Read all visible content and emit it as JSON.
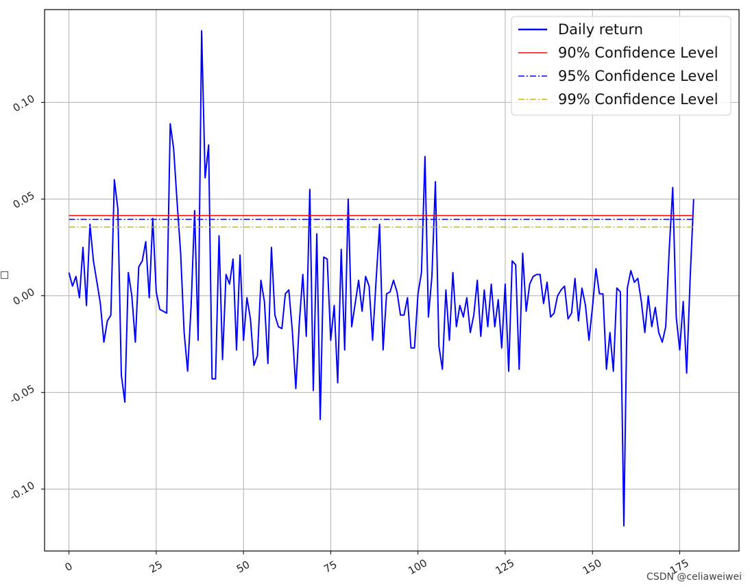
{
  "chart_data": {
    "type": "line",
    "title": "",
    "xlabel": "",
    "ylabel": "",
    "xlim": [
      -7,
      192
    ],
    "ylim": [
      -0.132,
      0.148
    ],
    "xticks": [
      0,
      25,
      50,
      75,
      100,
      125,
      150,
      175
    ],
    "xtick_labels": [
      "0",
      "25",
      "50",
      "75",
      "100",
      "125",
      "150",
      "175"
    ],
    "yticks": [
      -0.1,
      -0.05,
      0.0,
      0.05,
      0.1
    ],
    "ytick_labels": [
      "-0.10",
      "-0.05",
      "0.00",
      "0.05",
      "0.10"
    ],
    "grid": true,
    "legend_position": "top-right",
    "series": [
      {
        "name": "Daily return",
        "color": "#0000ff",
        "style": "solid",
        "x_start": 0,
        "values": [
          0.012,
          0.005,
          0.01,
          -0.001,
          0.025,
          -0.005,
          0.037,
          0.018,
          0.007,
          -0.004,
          -0.024,
          -0.013,
          -0.01,
          0.06,
          0.045,
          -0.041,
          -0.055,
          0.012,
          0.0,
          -0.024,
          0.015,
          0.018,
          0.028,
          -0.001,
          0.04,
          0.002,
          -0.007,
          -0.008,
          -0.009,
          0.089,
          0.076,
          0.048,
          0.022,
          -0.019,
          -0.039,
          -0.005,
          0.044,
          -0.023,
          0.137,
          0.061,
          0.078,
          -0.043,
          -0.043,
          0.031,
          -0.033,
          0.011,
          0.006,
          0.019,
          -0.028,
          0.021,
          -0.023,
          -0.001,
          -0.012,
          -0.036,
          -0.031,
          0.008,
          -0.003,
          -0.035,
          0.025,
          -0.01,
          -0.016,
          -0.017,
          0.001,
          0.003,
          -0.018,
          -0.048,
          -0.014,
          0.011,
          -0.021,
          0.055,
          -0.049,
          0.032,
          -0.064,
          0.02,
          0.019,
          -0.023,
          -0.005,
          -0.045,
          0.024,
          -0.028,
          0.05,
          -0.016,
          -0.004,
          0.008,
          -0.008,
          0.01,
          0.005,
          -0.023,
          0.008,
          0.037,
          -0.028,
          0.001,
          0.002,
          0.008,
          0.002,
          -0.01,
          -0.01,
          -0.001,
          -0.027,
          -0.027,
          0.001,
          0.012,
          0.072,
          -0.011,
          0.01,
          0.059,
          -0.026,
          -0.038,
          0.003,
          -0.023,
          0.012,
          -0.016,
          -0.005,
          -0.011,
          -0.001,
          -0.019,
          -0.01,
          0.008,
          -0.021,
          0.003,
          -0.016,
          0.006,
          -0.016,
          -0.002,
          -0.027,
          0.006,
          -0.039,
          0.018,
          0.016,
          -0.038,
          0.022,
          -0.008,
          0.006,
          0.01,
          0.011,
          0.011,
          -0.004,
          0.007,
          -0.011,
          -0.009,
          0.0,
          0.003,
          0.005,
          -0.012,
          -0.009,
          0.009,
          -0.013,
          0.004,
          -0.005,
          -0.023,
          -0.006,
          0.014,
          0.001,
          0.001,
          -0.038,
          -0.019,
          -0.039,
          0.004,
          0.002,
          -0.119,
          0.004,
          0.013,
          0.007,
          0.009,
          -0.003,
          -0.019,
          0.0,
          -0.016,
          -0.006,
          -0.019,
          -0.024,
          -0.016,
          0.024,
          0.056,
          -0.011,
          -0.028,
          -0.003,
          -0.04,
          0.009,
          0.05
        ]
      },
      {
        "name": "90% Confidence Level",
        "color": "#ff0000",
        "style": "solid",
        "value": 0.0415,
        "x_range": [
          0,
          179
        ]
      },
      {
        "name": "95% Confidence Level",
        "color": "#0000ff",
        "style": "dashdot",
        "value": 0.0395,
        "x_range": [
          0,
          179
        ]
      },
      {
        "name": "99% Confidence Level",
        "color": "#bfbf00",
        "style": "dashdot",
        "value": 0.0355,
        "x_range": [
          0,
          179
        ]
      }
    ]
  },
  "ylabel_fragment": "□",
  "watermark": "CSDN @celiaweiwei"
}
